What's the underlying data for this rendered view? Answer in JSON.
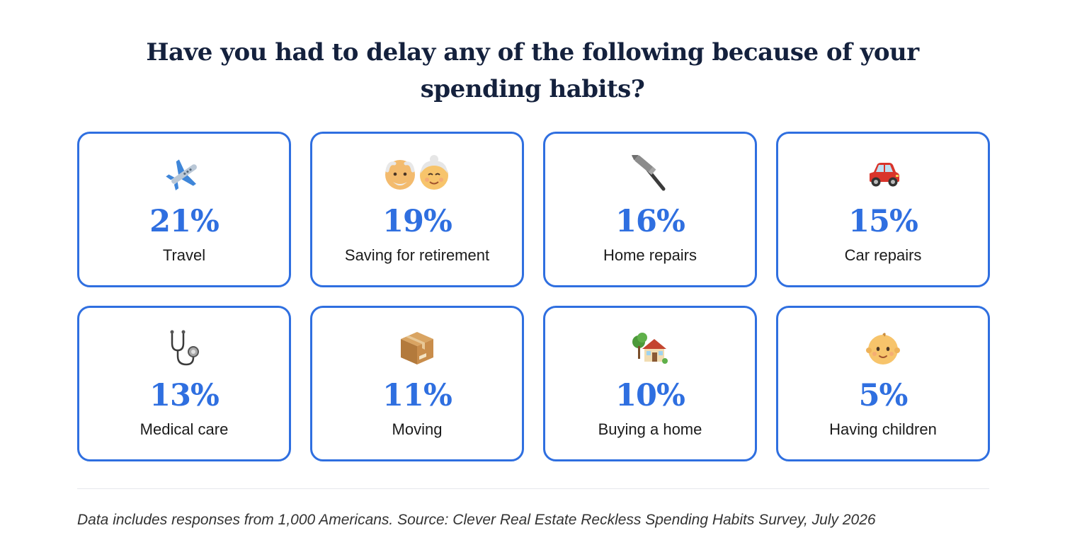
{
  "headline": "Have you had to delay any of the following because of your spending habits?",
  "accent_color": "#2f6fe0",
  "cards": [
    {
      "icon": "airplane-icon",
      "value": "21%",
      "label": "Travel"
    },
    {
      "icon": "older-couple-icon",
      "value": "19%",
      "label": "Saving for retirement"
    },
    {
      "icon": "hammer-icon",
      "value": "16%",
      "label": "Home repairs"
    },
    {
      "icon": "car-icon",
      "value": "15%",
      "label": "Car repairs"
    },
    {
      "icon": "stethoscope-icon",
      "value": "13%",
      "label": "Medical care"
    },
    {
      "icon": "package-box-icon",
      "value": "11%",
      "label": "Moving"
    },
    {
      "icon": "house-icon",
      "value": "10%",
      "label": "Buying a home"
    },
    {
      "icon": "baby-icon",
      "value": "5%",
      "label": "Having children"
    }
  ],
  "source_note": "Data includes responses from 1,000 Americans. Source: Clever Real Estate Reckless Spending Habits Survey, July 2026"
}
